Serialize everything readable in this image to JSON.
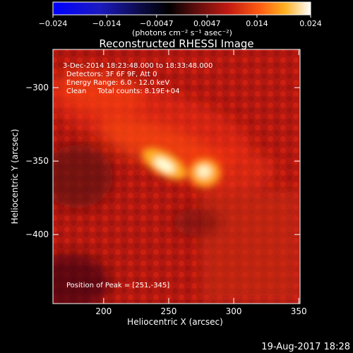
{
  "chart_data": {
    "type": "heatmap",
    "title": "Reconstructed RHESSI Image",
    "xlabel": "Heliocentric X (arcsec)",
    "ylabel": "Heliocentric Y (arcsec)",
    "xlim": [
      161,
      351
    ],
    "ylim": [
      -447,
      -274
    ],
    "x_ticks": [
      200,
      250,
      300,
      350
    ],
    "y_ticks": [
      -300,
      -350,
      -400
    ],
    "colorbar": {
      "range": [
        -0.024,
        0.024
      ],
      "tick_values": [
        -0.024,
        -0.014,
        -0.0047,
        0.0047,
        0.014,
        0.024
      ],
      "tick_labels": [
        "−0.024",
        "−0.014",
        "−0.0047",
        "0.0047",
        "0.014",
        "0.024"
      ],
      "unit_label": "(photons cm⁻² s⁻¹ asec⁻²)",
      "colormap": "blue-black-red-yellow-white"
    },
    "annotations": {
      "time_range": "3-Dec-2014 18:23:48.000 to 18:33:48.000",
      "detectors": "Detectors: 3F 6F 9F, Att 0",
      "energy": "Energy Range: 6.0 - 12.0 keV",
      "clean": "Clean     Total counts: 8.19E+04",
      "peak": "Position of Peak = [251,-345]"
    },
    "sources": [
      {
        "x": 251,
        "y": -345,
        "level": 1.0
      },
      {
        "x": 280,
        "y": -351,
        "level": 0.95
      }
    ],
    "grid": false
  },
  "footer": {
    "date": "19-Aug-2017 18:28"
  }
}
